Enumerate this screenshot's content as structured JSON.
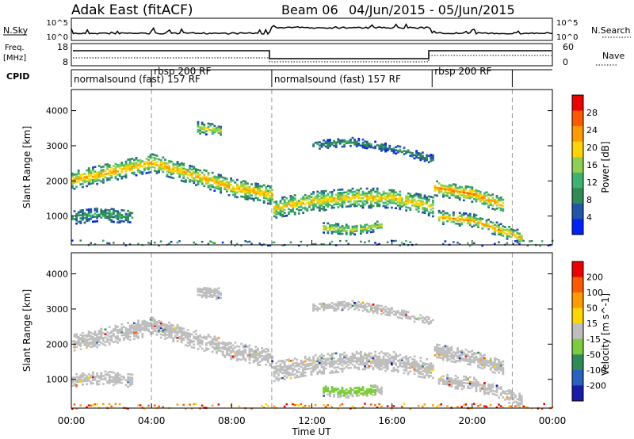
{
  "header": {
    "station": "Adak East (fitACF)",
    "beam": "Beam 06",
    "date_range": "04/Jun/2015 - 05/Jun/2015"
  },
  "strip_labels": {
    "nsky": "N.Sky",
    "nsearch": "N.Search",
    "freq": "Freq.",
    "freq_unit": "[MHz]",
    "nave": "Nave",
    "cpid": "CPID",
    "noise_left_ticks": [
      "10^5",
      "10^0"
    ],
    "noise_right_ticks": [
      "10^5",
      "10^0"
    ],
    "freq_ticks": [
      "18",
      "8"
    ],
    "nave_ticks": [
      "60",
      "0"
    ]
  },
  "cpid_segments": [
    {
      "label": "normalsound (fast) 157 RF",
      "start_h": 0,
      "end_h": 10
    },
    {
      "label": "rbsp 200 RF",
      "start_h": 4,
      "end_h": 10
    },
    {
      "label": "normalsound (fast) 157 RF",
      "start_h": 10,
      "end_h": 22
    },
    {
      "label": "rbsp 200 RF",
      "start_h": 18,
      "end_h": 22
    }
  ],
  "colors": {
    "power_scale": [
      "#0020ff",
      "#2255aa",
      "#2e8b57",
      "#3cb371",
      "#8fd14f",
      "#ffd400",
      "#ff9a00",
      "#ff5a00",
      "#ee0000"
    ],
    "velocity_scale": [
      "#1a1aaa",
      "#2a60c0",
      "#2e8b57",
      "#7ccd3c",
      "#bebebe",
      "#ffd400",
      "#ff9a00",
      "#ff5a00",
      "#ee0000"
    ],
    "ground_scatter": "#bebebe",
    "guide_line": "#999999"
  },
  "chart_data": [
    {
      "type": "heatmap",
      "name": "power",
      "ylabel": "Slant Range [km]",
      "xlabel": "Time UT",
      "x_ticks": [
        "00:00",
        "04:00",
        "08:00",
        "12:00",
        "16:00",
        "20:00",
        "00:00"
      ],
      "x_range_h": [
        0,
        24
      ],
      "y_ticks": [
        "1000",
        "2000",
        "3000",
        "4000"
      ],
      "ylim": [
        180,
        4600
      ],
      "colorbar": {
        "label": "Power [dB]",
        "ticks": [
          "28",
          "24",
          "20",
          "16",
          "12",
          "8",
          "4"
        ],
        "range": [
          0,
          30
        ]
      },
      "scatter_bands": [
        {
          "points": [
            [
              0,
              2050
            ],
            [
              2,
              2300
            ],
            [
              4,
              2550
            ],
            [
              6,
              2200
            ],
            [
              8,
              1850
            ],
            [
              10,
              1620
            ]
          ],
          "width_km": 260,
          "peak_db": 22
        },
        {
          "points": [
            [
              10,
              1250
            ],
            [
              12,
              1450
            ],
            [
              14,
              1550
            ],
            [
              16,
              1550
            ],
            [
              18,
              1300
            ]
          ],
          "width_km": 280,
          "peak_db": 20
        },
        {
          "points": [
            [
              18,
              1850
            ],
            [
              20,
              1650
            ],
            [
              21.5,
              1350
            ]
          ],
          "width_km": 220,
          "peak_db": 24
        },
        {
          "points": [
            [
              12.5,
              700
            ],
            [
              14,
              640
            ],
            [
              15.5,
              760
            ]
          ],
          "width_km": 140,
          "peak_db": 18
        },
        {
          "points": [
            [
              6.2,
              3550
            ],
            [
              7.5,
              3450
            ]
          ],
          "width_km": 160,
          "peak_db": 18
        },
        {
          "points": [
            [
              12,
              3050
            ],
            [
              14,
              3150
            ],
            [
              16,
              2950
            ],
            [
              18,
              2650
            ]
          ],
          "width_km": 120,
          "peak_db": 8
        },
        {
          "points": [
            [
              0,
              1000
            ],
            [
              1.5,
              1100
            ],
            [
              3,
              1000
            ]
          ],
          "width_km": 200,
          "peak_db": 10
        },
        {
          "points": [
            [
              18.2,
              1000
            ],
            [
              20,
              900
            ],
            [
              22.5,
              400
            ]
          ],
          "width_km": 180,
          "peak_db": 22
        }
      ]
    },
    {
      "type": "heatmap",
      "name": "velocity",
      "ylabel": "Slant Range [km]",
      "xlabel": "Time UT",
      "x_ticks": [
        "00:00",
        "04:00",
        "08:00",
        "12:00",
        "16:00",
        "20:00",
        "00:00"
      ],
      "x_range_h": [
        0,
        24
      ],
      "y_ticks": [
        "1000",
        "2000",
        "3000",
        "4000"
      ],
      "ylim": [
        180,
        4600
      ],
      "colorbar": {
        "label": "Velocity [m s^-1]",
        "ticks": [
          "200",
          "100",
          "50",
          "15",
          "-15",
          "-50",
          "-100",
          "-200"
        ],
        "range": [
          -250,
          250
        ]
      },
      "green_patch": {
        "x": [
          12.5,
          15.2
        ],
        "y": [
          600,
          850
        ]
      }
    }
  ],
  "xlabel": "Time UT"
}
